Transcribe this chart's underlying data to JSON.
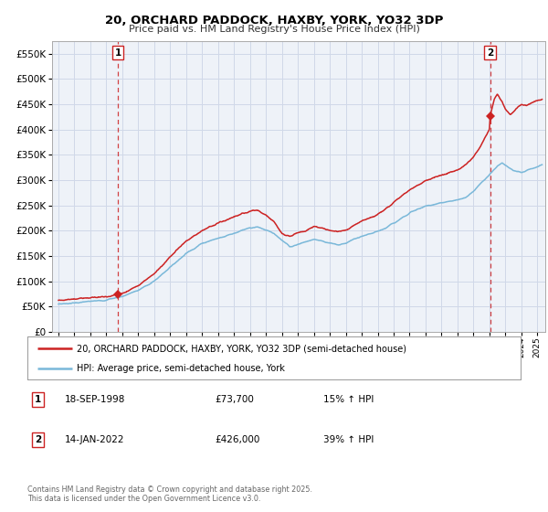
{
  "title": "20, ORCHARD PADDOCK, HAXBY, YORK, YO32 3DP",
  "subtitle": "Price paid vs. HM Land Registry's House Price Index (HPI)",
  "legend_line1": "20, ORCHARD PADDOCK, HAXBY, YORK, YO32 3DP (semi-detached house)",
  "legend_line2": "HPI: Average price, semi-detached house, York",
  "sale1_date": "18-SEP-1998",
  "sale1_price": "£73,700",
  "sale1_hpi": "15% ↑ HPI",
  "sale1_x": 1998.72,
  "sale1_y": 73700,
  "sale2_date": "14-JAN-2022",
  "sale2_price": "£426,000",
  "sale2_hpi": "39% ↑ HPI",
  "sale2_x": 2022.04,
  "sale2_y": 426000,
  "vline1_x": 1998.72,
  "vline2_x": 2022.04,
  "hpi_color": "#7ab8d9",
  "price_color": "#cc2222",
  "vline_color": "#cc2222",
  "background_color": "#ffffff",
  "plot_bg_color": "#eef2f8",
  "grid_color": "#d0d8e8",
  "ylim": [
    0,
    575000
  ],
  "xlim_start": 1994.6,
  "xlim_end": 2025.5,
  "footer": "Contains HM Land Registry data © Crown copyright and database right 2025.\nThis data is licensed under the Open Government Licence v3.0.",
  "yticks": [
    0,
    50000,
    100000,
    150000,
    200000,
    250000,
    300000,
    350000,
    400000,
    450000,
    500000,
    550000
  ],
  "ytick_labels": [
    "£0",
    "£50K",
    "£100K",
    "£150K",
    "£200K",
    "£250K",
    "£300K",
    "£350K",
    "£400K",
    "£450K",
    "£500K",
    "£550K"
  ],
  "xticks": [
    1995,
    1996,
    1997,
    1998,
    1999,
    2000,
    2001,
    2002,
    2003,
    2004,
    2005,
    2006,
    2007,
    2008,
    2009,
    2010,
    2011,
    2012,
    2013,
    2014,
    2015,
    2016,
    2017,
    2018,
    2019,
    2020,
    2021,
    2022,
    2023,
    2024,
    2025
  ]
}
